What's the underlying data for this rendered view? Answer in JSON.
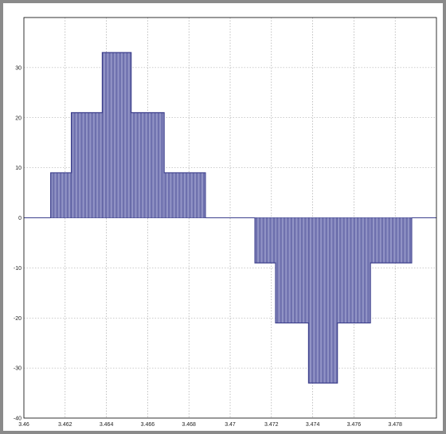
{
  "chart_data": {
    "type": "bar",
    "title": "",
    "xlabel": "",
    "ylabel": "",
    "xlim": [
      3.46,
      3.48
    ],
    "ylim": [
      -40,
      40
    ],
    "grid": true,
    "x_ticks": [
      3.46,
      3.462,
      3.464,
      3.466,
      3.468,
      3.47,
      3.472,
      3.474,
      3.476,
      3.478
    ],
    "x_tick_labels": [
      "3.46",
      "3.462",
      "3.464",
      "3.466",
      "3.468",
      "3.47",
      "3.472",
      "3.474",
      "3.476",
      "3.478"
    ],
    "y_ticks": [
      -40,
      -30,
      -20,
      -10,
      0,
      10,
      20,
      30
    ],
    "y_tick_labels": [
      "-40",
      "-30",
      "-20",
      "-10",
      "0",
      "10",
      "20",
      "30"
    ],
    "pulse_spacing": 0.0001,
    "series": [
      {
        "color": "#3c3f8c",
        "levels": [
          {
            "x_start": 3.4613,
            "x_end": 3.4623,
            "value": 9
          },
          {
            "x_start": 3.4623,
            "x_end": 3.4638,
            "value": 21
          },
          {
            "x_start": 3.4638,
            "x_end": 3.4652,
            "value": 33
          },
          {
            "x_start": 3.4652,
            "x_end": 3.4668,
            "value": 21
          },
          {
            "x_start": 3.4668,
            "x_end": 3.4688,
            "value": 9
          },
          {
            "x_start": 3.4712,
            "x_end": 3.4722,
            "value": -9
          },
          {
            "x_start": 3.4722,
            "x_end": 3.4738,
            "value": -21
          },
          {
            "x_start": 3.4738,
            "x_end": 3.4752,
            "value": -33
          },
          {
            "x_start": 3.4752,
            "x_end": 3.4768,
            "value": -21
          },
          {
            "x_start": 3.4768,
            "x_end": 3.4788,
            "value": -9
          }
        ]
      }
    ]
  }
}
